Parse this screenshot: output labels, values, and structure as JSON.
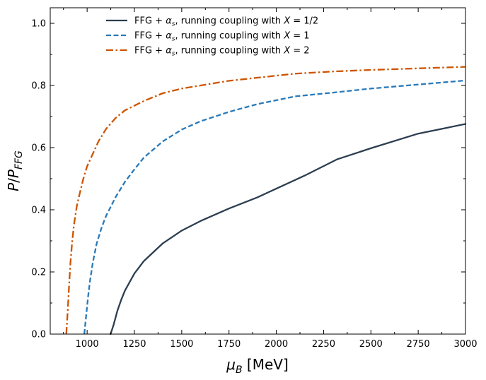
{
  "chart_data": {
    "type": "line",
    "xlabel": "μ_B [MeV]",
    "ylabel": "P/P_FFG",
    "xlim": [
      805,
      3000
    ],
    "ylim": [
      0.0,
      1.05
    ],
    "x_ticks": [
      1000,
      1250,
      1500,
      1750,
      2000,
      2250,
      2500,
      2750,
      3000
    ],
    "y_ticks": [
      0.0,
      0.2,
      0.4,
      0.6,
      0.8,
      1.0
    ],
    "x_tick_labels": [
      "1000",
      "1250",
      "1500",
      "1750",
      "2000",
      "2250",
      "2500",
      "2750",
      "3000"
    ],
    "y_tick_labels": [
      "0.0",
      "0.2",
      "0.4",
      "0.6",
      "0.8",
      "1.0"
    ],
    "grid": false,
    "legend_position": "top-left",
    "series": [
      {
        "name": "FFG + α_s, running coupling with X = 1/2",
        "legend_prefix": "FFG + ",
        "legend_alpha": "α",
        "legend_sub": "s",
        "legend_mid": ", running coupling with ",
        "legend_x": "X",
        "legend_eq": " = 1/2",
        "color": "#2c3e50",
        "dash": "solid",
        "x": [
          1124,
          1140,
          1160,
          1180,
          1200,
          1250,
          1300,
          1400,
          1500,
          1600,
          1750,
          1900,
          2000,
          2150,
          2320,
          2500,
          2750,
          3000
        ],
        "y": [
          0.0,
          0.03,
          0.075,
          0.11,
          0.14,
          0.195,
          0.235,
          0.292,
          0.333,
          0.364,
          0.404,
          0.44,
          0.468,
          0.51,
          0.562,
          0.598,
          0.645,
          0.676
        ]
      },
      {
        "name": "FFG + α_s, running coupling with X = 1",
        "legend_prefix": "FFG + ",
        "legend_alpha": "α",
        "legend_sub": "s",
        "legend_mid": ", running coupling with ",
        "legend_x": "X",
        "legend_eq": " = 1",
        "color": "#2a7ab9",
        "dash": "dashed",
        "x": [
          985,
          995,
          1005,
          1015,
          1030,
          1050,
          1075,
          1100,
          1150,
          1200,
          1250,
          1300,
          1400,
          1500,
          1600,
          1750,
          1900,
          2100,
          2300,
          2500,
          2750,
          3000
        ],
        "y": [
          0.0,
          0.06,
          0.12,
          0.17,
          0.23,
          0.29,
          0.34,
          0.38,
          0.44,
          0.49,
          0.53,
          0.568,
          0.62,
          0.658,
          0.685,
          0.715,
          0.74,
          0.765,
          0.777,
          0.79,
          0.803,
          0.816
        ]
      },
      {
        "name": "FFG + α_s, running coupling with X = 2",
        "legend_prefix": "FFG + ",
        "legend_alpha": "α",
        "legend_sub": "s",
        "legend_mid": ", running coupling with ",
        "legend_x": "X",
        "legend_eq": " = 2",
        "color": "#cc5500",
        "dash": "dashdot",
        "x": [
          890,
          898,
          905,
          912,
          920,
          930,
          945,
          960,
          980,
          1000,
          1030,
          1060,
          1100,
          1150,
          1200,
          1300,
          1400,
          1500,
          1600,
          1750,
          1900,
          2100,
          2300,
          2500,
          2750,
          3000
        ],
        "y": [
          0.0,
          0.08,
          0.16,
          0.23,
          0.29,
          0.35,
          0.41,
          0.45,
          0.5,
          0.54,
          0.58,
          0.62,
          0.66,
          0.695,
          0.72,
          0.75,
          0.775,
          0.79,
          0.8,
          0.815,
          0.825,
          0.838,
          0.845,
          0.85,
          0.855,
          0.86
        ]
      }
    ]
  }
}
